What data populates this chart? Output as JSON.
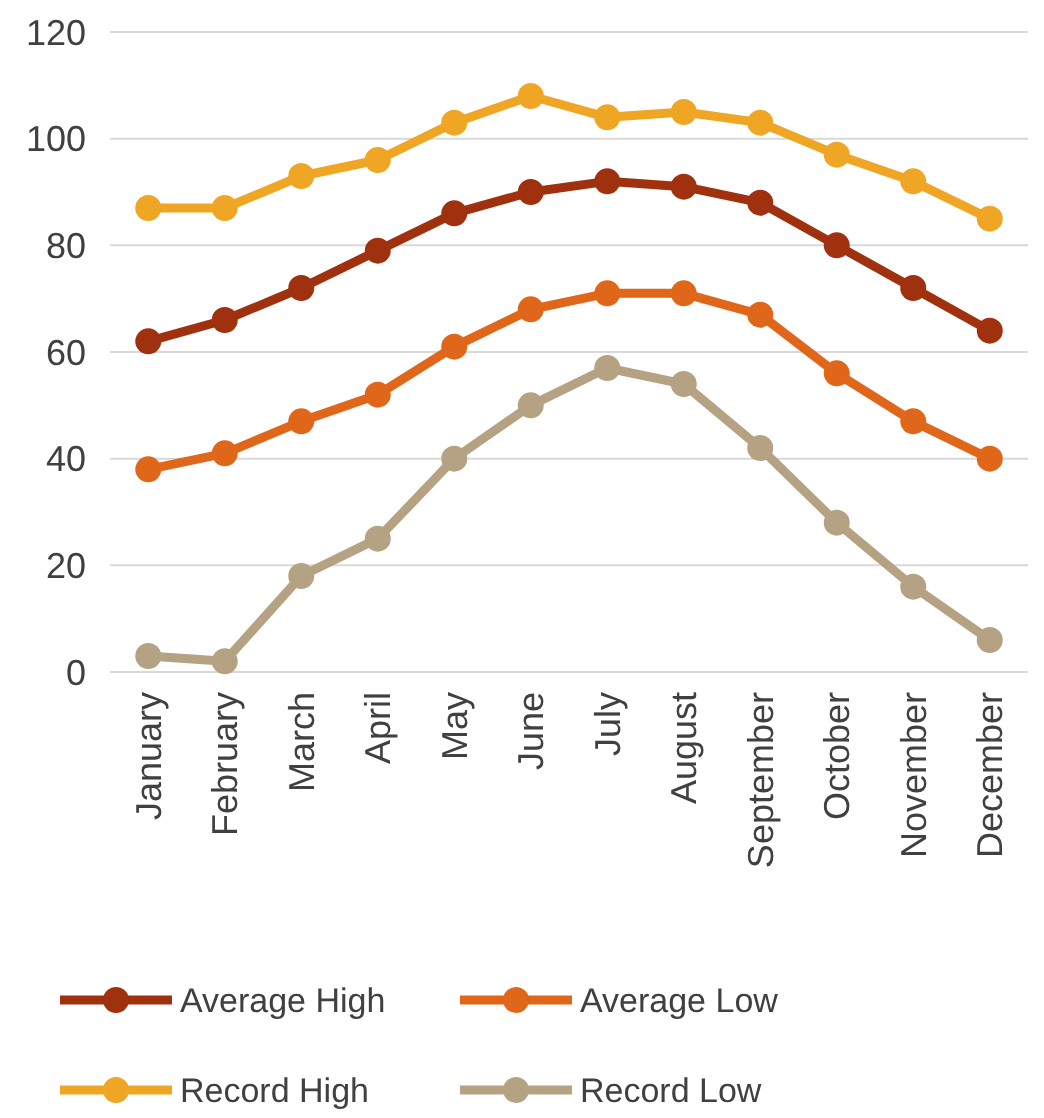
{
  "chart_data": {
    "type": "line",
    "categories": [
      "January",
      "February",
      "March",
      "April",
      "May",
      "June",
      "July",
      "August",
      "September",
      "October",
      "November",
      "December"
    ],
    "series": [
      {
        "name": "Average High",
        "color": "#a0310f",
        "values": [
          62,
          66,
          72,
          79,
          86,
          90,
          92,
          91,
          88,
          80,
          72,
          64
        ]
      },
      {
        "name": "Average Low",
        "color": "#e0661a",
        "values": [
          38,
          41,
          47,
          52,
          61,
          68,
          71,
          71,
          67,
          56,
          47,
          40
        ]
      },
      {
        "name": "Record High",
        "color": "#eea624",
        "values": [
          87,
          87,
          93,
          96,
          103,
          108,
          104,
          105,
          103,
          97,
          92,
          85
        ]
      },
      {
        "name": "Record Low",
        "color": "#b5a283",
        "values": [
          3,
          2,
          18,
          25,
          40,
          50,
          57,
          54,
          42,
          28,
          16,
          6
        ]
      }
    ],
    "ylim": [
      0,
      120
    ],
    "yticks": [
      0,
      20,
      40,
      60,
      80,
      100,
      120
    ],
    "grid": "y",
    "legend": "bottom",
    "marker": "circle",
    "line_style": "solid"
  }
}
